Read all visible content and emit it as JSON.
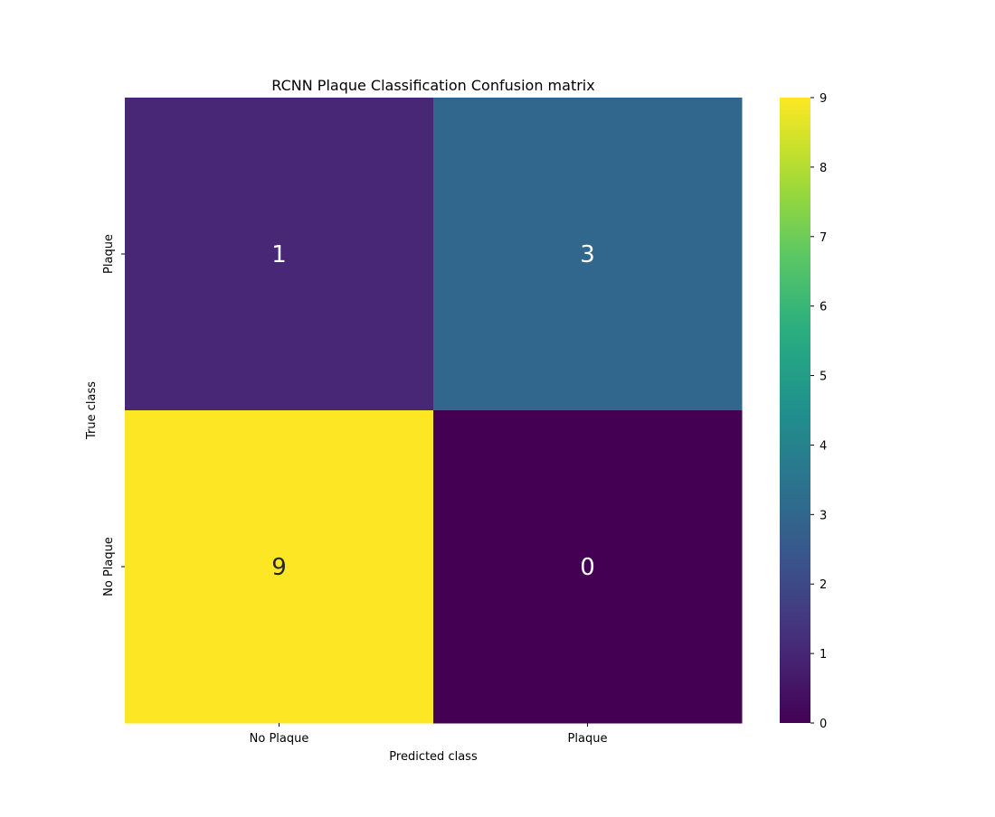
{
  "chart_data": {
    "type": "heatmap",
    "title": "RCNN Plaque Classification Confusion matrix",
    "xlabel": "Predicted class",
    "ylabel": "True class",
    "x_categories": [
      "No Plaque",
      "Plaque"
    ],
    "y_categories": [
      "Plaque",
      "No Plaque"
    ],
    "values": [
      [
        1,
        3
      ],
      [
        9,
        0
      ]
    ],
    "colormap": "viridis",
    "colorbar": {
      "range": [
        0,
        9
      ],
      "ticks": [
        0,
        1,
        2,
        3,
        4,
        5,
        6,
        7,
        8,
        9
      ]
    },
    "grid": false
  }
}
